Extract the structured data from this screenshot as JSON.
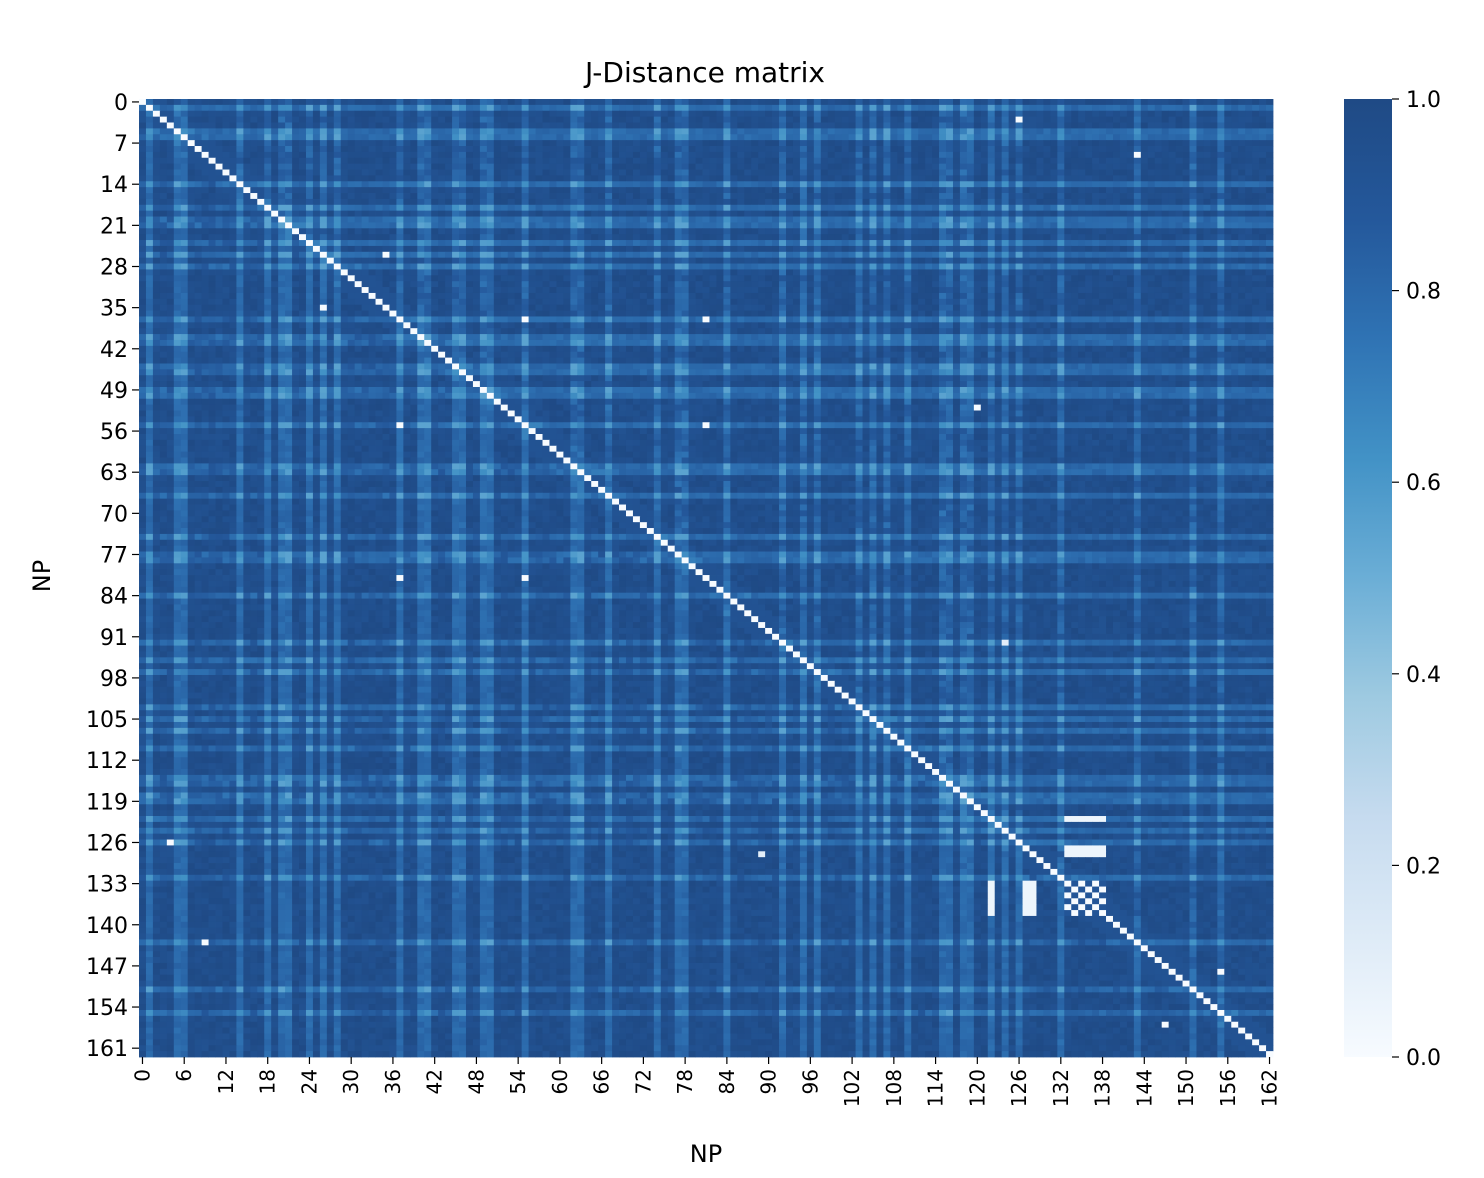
{
  "chart_data": {
    "type": "heatmap",
    "title": "J-Distance matrix",
    "xlabel": "NP",
    "ylabel": "NP",
    "n": 163,
    "x_ticks": [
      0,
      6,
      12,
      18,
      24,
      30,
      36,
      42,
      48,
      54,
      60,
      66,
      72,
      78,
      84,
      90,
      96,
      102,
      108,
      114,
      120,
      126,
      132,
      138,
      144,
      150,
      156,
      162
    ],
    "y_ticks": [
      0,
      7,
      14,
      21,
      28,
      35,
      42,
      49,
      56,
      63,
      70,
      77,
      84,
      91,
      98,
      105,
      112,
      119,
      126,
      133,
      140,
      147,
      154,
      161
    ],
    "colorbar": {
      "range": [
        0.0,
        1.0
      ],
      "ticks": [
        0.0,
        0.2,
        0.4,
        0.6,
        0.8,
        1.0
      ],
      "tick_labels": [
        "0.0",
        "0.2",
        "0.4",
        "0.6",
        "0.8",
        "1.0"
      ],
      "colormap": "Blues",
      "color_low": "#f7fbff",
      "color_high": "#1f4a85"
    },
    "diagonal_value": 0.0,
    "typical_range": [
      0.65,
      1.0
    ],
    "notable_low_cells": [
      {
        "row": 3,
        "col": 126,
        "value": 0.0
      },
      {
        "row": 9,
        "col": 143,
        "value": 0.0
      },
      {
        "row": 26,
        "col": 35,
        "value": 0.0
      },
      {
        "row": 35,
        "col": 26,
        "value": 0.0
      },
      {
        "row": 37,
        "col": 55,
        "value": 0.0
      },
      {
        "row": 37,
        "col": 81,
        "value": 0.0
      },
      {
        "row": 55,
        "col": 37,
        "value": 0.0
      },
      {
        "row": 55,
        "col": 81,
        "value": 0.0
      },
      {
        "row": 81,
        "col": 37,
        "value": 0.0
      },
      {
        "row": 81,
        "col": 55,
        "value": 0.0
      },
      {
        "row": 52,
        "col": 120,
        "value": 0.0
      },
      {
        "row": 126,
        "col": 4,
        "value": 0.0
      },
      {
        "row": 143,
        "col": 9,
        "value": 0.0
      },
      {
        "row": 148,
        "col": 155,
        "value": 0.0
      },
      {
        "row": 157,
        "col": 147,
        "value": 0.0
      },
      {
        "row": 128,
        "col": 89,
        "value": 0.1
      },
      {
        "row": 92,
        "col": 124,
        "value": 0.1
      }
    ],
    "low_block": {
      "rows": [
        133,
        138
      ],
      "cols": [
        133,
        138
      ],
      "value": 0.0,
      "also_low_cols_for_rows": [
        122,
        127,
        128
      ]
    }
  }
}
